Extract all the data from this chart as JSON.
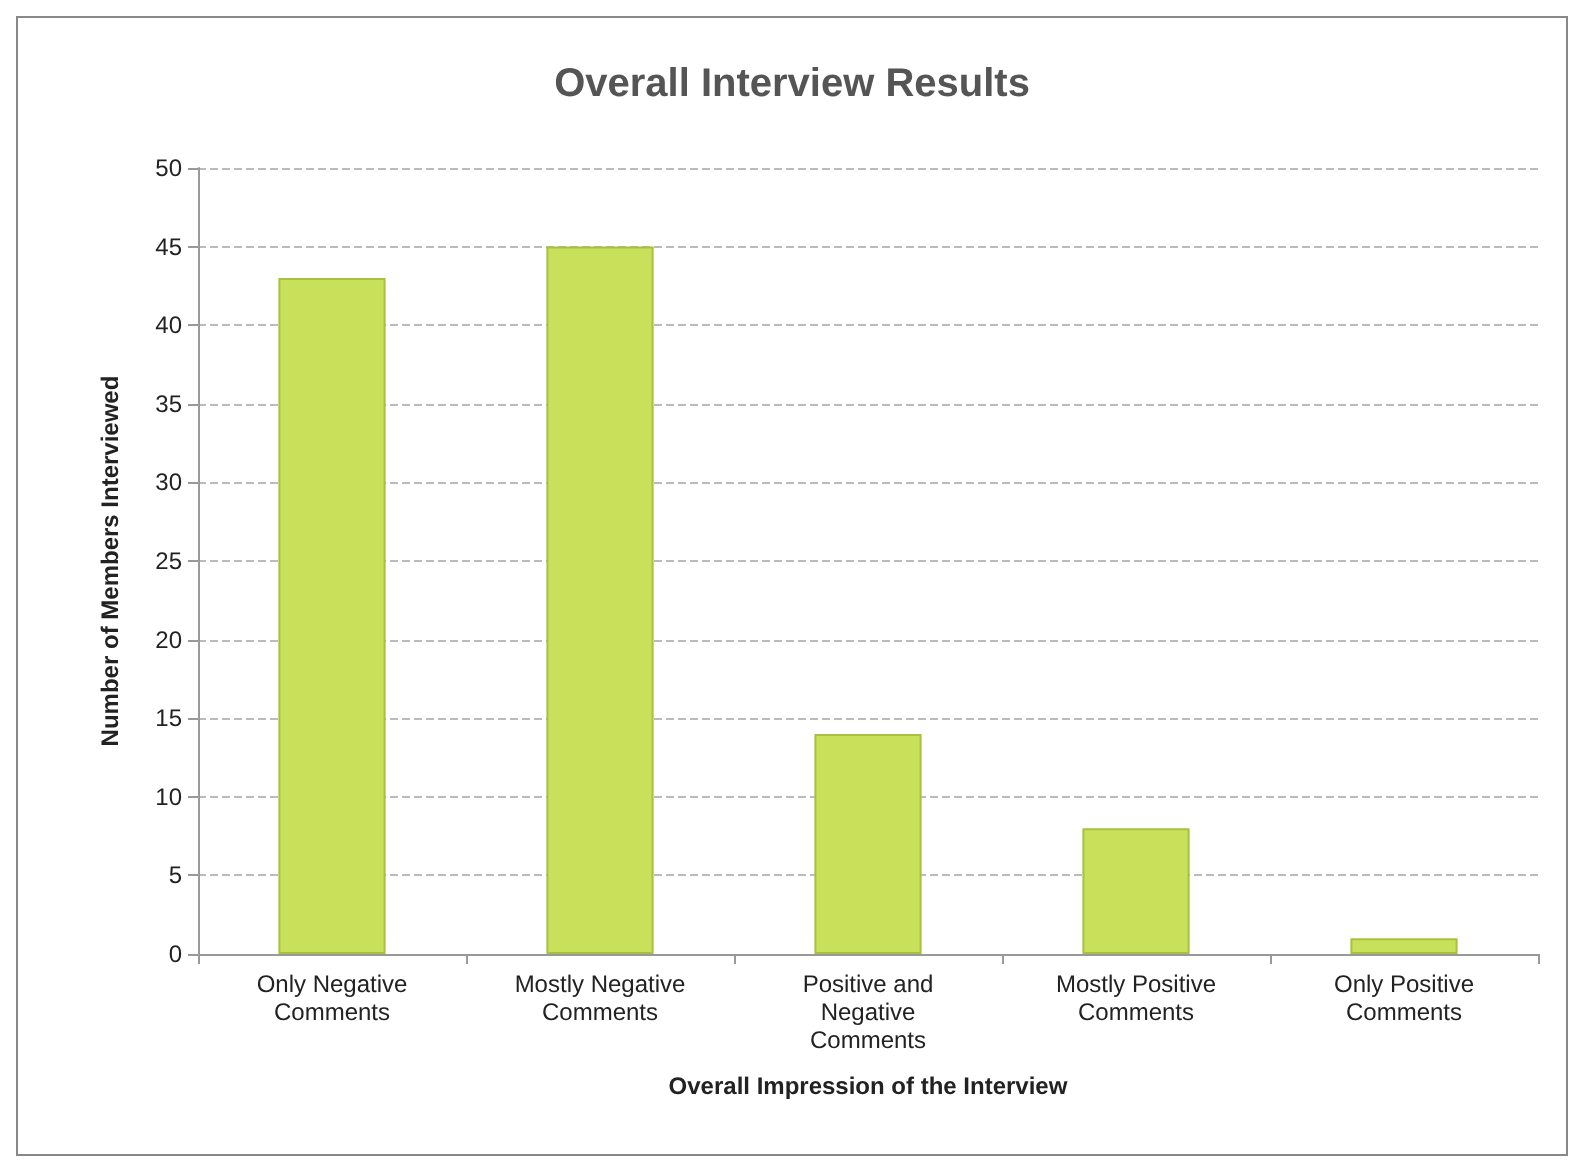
{
  "chart_data": {
    "type": "bar",
    "title": "Overall Interview Results",
    "xlabel": "Overall Impression of the Interview",
    "ylabel": "Number of Members Interviewed",
    "categories": [
      "Only Negative\nComments",
      "Mostly Negative\nComments",
      "Positive and\nNegative\nComments",
      "Mostly Positive\nComments",
      "Only Positive\nComments"
    ],
    "values": [
      43,
      45,
      14,
      8,
      1
    ],
    "color": "#c8e05a",
    "ylim": [
      0,
      50
    ],
    "yticks": [
      0,
      5,
      10,
      15,
      20,
      25,
      30,
      35,
      40,
      45,
      50
    ],
    "grid": "y"
  }
}
